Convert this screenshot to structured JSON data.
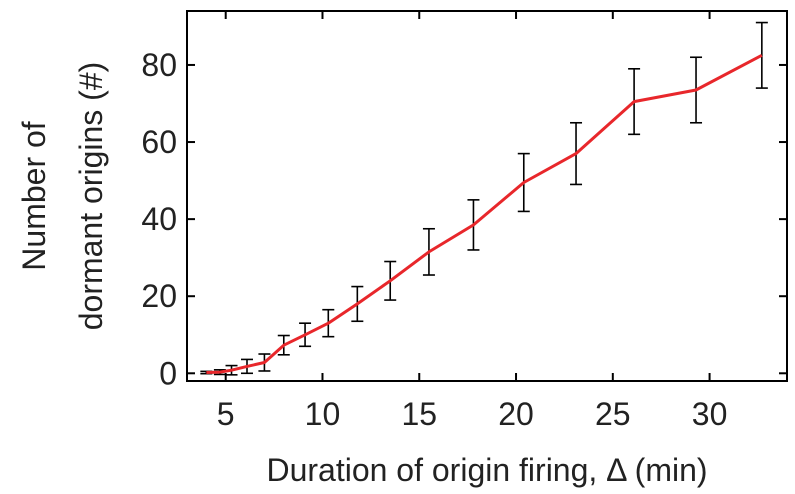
{
  "chart_data": {
    "type": "line",
    "title": "",
    "xlabel": "Duration of origin firing, Δ (min)",
    "ylabel_lines": [
      "Number of",
      "dormant origins (#)"
    ],
    "xlim": [
      3,
      34
    ],
    "ylim": [
      -2,
      94
    ],
    "xticks": [
      5,
      10,
      15,
      20,
      25,
      30
    ],
    "yticks": [
      0,
      20,
      40,
      60,
      80
    ],
    "grid": false,
    "legend": "none",
    "line_color": "#e8272b",
    "errorbar_color": "#000000",
    "series": [
      {
        "x": [
          4.0,
          4.7,
          5.3,
          6.1,
          7.0,
          8.0,
          9.1,
          10.3,
          11.8,
          13.5,
          15.5,
          17.8,
          20.4,
          23.1,
          26.1,
          29.3,
          32.7
        ],
        "y": [
          0.2,
          0.3,
          0.8,
          1.8,
          2.8,
          7.3,
          10.0,
          13.0,
          18.0,
          24.0,
          31.5,
          38.5,
          49.5,
          57.0,
          70.5,
          73.5,
          82.5
        ],
        "err": [
          0.3,
          0.6,
          1.2,
          1.8,
          2.2,
          2.5,
          3.0,
          3.5,
          4.5,
          5.0,
          6.0,
          6.5,
          7.5,
          8.0,
          8.5,
          8.5,
          8.5
        ]
      }
    ]
  }
}
